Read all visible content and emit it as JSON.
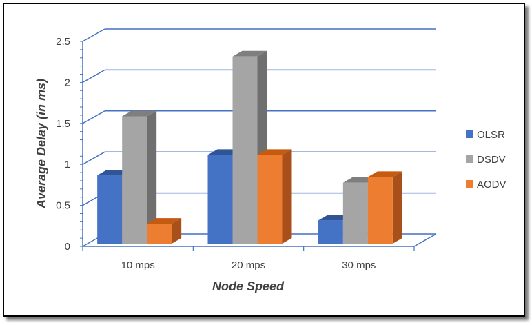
{
  "chart_data": {
    "type": "bar",
    "categories": [
      "10 mps",
      "20 mps",
      "30 mps"
    ],
    "series": [
      {
        "name": "OLSR",
        "values": [
          0.85,
          1.1,
          0.3
        ],
        "colors": {
          "front": "#4472c4",
          "top": "#2f5597",
          "side": "#2e5290"
        }
      },
      {
        "name": "DSDV",
        "values": [
          1.57,
          2.3,
          0.76
        ],
        "colors": {
          "front": "#a5a5a5",
          "top": "#7f7f7f",
          "side": "#6f6f6f"
        }
      },
      {
        "name": "AODV",
        "values": [
          0.26,
          1.1,
          0.83
        ],
        "colors": {
          "front": "#ed7d31",
          "top": "#c55a11",
          "side": "#a9501a"
        }
      }
    ],
    "ylim": [
      0,
      2.5
    ],
    "yticks": [
      "0",
      "0.5",
      "1",
      "1.5",
      "2",
      "2.5"
    ],
    "xlabel": "Node Speed",
    "ylabel": "Average Delay (in ms)",
    "grid": true,
    "legend": "right",
    "grid_color": "#4472c4"
  }
}
